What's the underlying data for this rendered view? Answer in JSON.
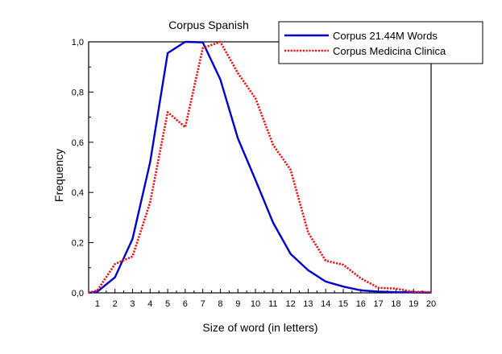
{
  "chart_data": {
    "type": "line",
    "title": "Corpus Spanish",
    "xlabel": "Size of word (in letters)",
    "ylabel": "Frequency",
    "xlim": [
      0.5,
      20
    ],
    "ylim": [
      0,
      1.0
    ],
    "x_ticks": [
      1,
      2,
      3,
      4,
      5,
      6,
      7,
      8,
      9,
      10,
      11,
      12,
      13,
      14,
      15,
      16,
      17,
      18,
      19,
      20
    ],
    "y_ticks": [
      "0,0",
      "0,2",
      "0,4",
      "0,6",
      "0,8",
      "1,0"
    ],
    "y_tick_values": [
      0,
      0.2,
      0.4,
      0.6,
      0.8,
      1.0
    ],
    "grid": false,
    "legend_position": "top-right",
    "x": [
      0.5,
      1,
      2,
      3,
      4,
      5,
      6,
      7,
      8,
      9,
      10,
      11,
      12,
      13,
      14,
      15,
      16,
      17,
      18,
      19,
      20
    ],
    "series": [
      {
        "name": "Corpus 21.44M Words",
        "color": "#0000cc",
        "style": "solid",
        "values": [
          0.0,
          0.005,
          0.062,
          0.215,
          0.52,
          0.955,
          1.0,
          0.998,
          0.85,
          0.615,
          0.45,
          0.28,
          0.155,
          0.09,
          0.045,
          0.025,
          0.01,
          0.005,
          0.003,
          0.002,
          0.001
        ]
      },
      {
        "name": "Corpus Medicina Clinica",
        "color": "#e81414",
        "style": "dotted",
        "values": [
          0.0,
          0.01,
          0.115,
          0.145,
          0.36,
          0.72,
          0.66,
          0.975,
          1.0,
          0.875,
          0.775,
          0.59,
          0.49,
          0.24,
          0.128,
          0.112,
          0.058,
          0.02,
          0.017,
          0.004,
          0.003
        ]
      }
    ]
  }
}
